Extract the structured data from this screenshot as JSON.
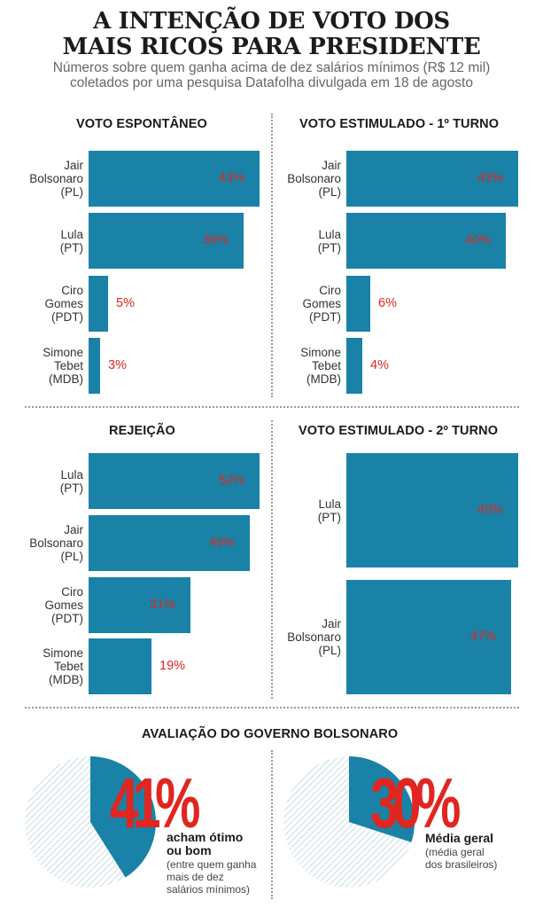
{
  "header": {
    "title_line1": "A INTENÇÃO DE VOTO DOS",
    "title_line2": "MAIS RICOS PARA PRESIDENTE",
    "subtitle_line1": "Números sobre quem ganha acima de dez salários mínimos (R$ 12 mil)",
    "subtitle_line2": "coletados por uma pesquisa Datafolha divulgada em 18 de agosto"
  },
  "colors": {
    "bar": "#1982a6",
    "value": "#e0261f",
    "pie_hatch": "#b9d4e0"
  },
  "chart_data": [
    {
      "type": "bar",
      "orientation": "horizontal",
      "title": "VOTO ESPONTÂNEO",
      "categories": [
        [
          "Jair",
          "Bolsonaro",
          "(PL)"
        ],
        [
          "Lula",
          "(PT)"
        ],
        [
          "Ciro",
          "Gomes",
          "(PDT)"
        ],
        [
          "Simone",
          "Tebet",
          "(MDB)"
        ]
      ],
      "values": [
        43,
        39,
        5,
        3
      ],
      "labels": [
        "43%",
        "39%",
        "5%",
        "3%"
      ]
    },
    {
      "type": "bar",
      "orientation": "horizontal",
      "title": "VOTO ESTIMULADO - 1º TURNO",
      "categories": [
        [
          "Jair",
          "Bolsonaro",
          "(PL)"
        ],
        [
          "Lula",
          "(PT)"
        ],
        [
          "Ciro",
          "Gomes",
          "(PDT)"
        ],
        [
          "Simone",
          "Tebet",
          "(MDB)"
        ]
      ],
      "values": [
        43,
        40,
        6,
        4
      ],
      "labels": [
        "43%",
        "40%",
        "6%",
        "4%"
      ]
    },
    {
      "type": "bar",
      "orientation": "horizontal",
      "title": "REJEIÇÃO",
      "categories": [
        [
          "Lula",
          "(PT)"
        ],
        [
          "Jair",
          "Bolsonaro",
          "(PL)"
        ],
        [
          "Ciro",
          "Gomes",
          "(PDT)"
        ],
        [
          "Simone",
          "Tebet",
          "(MDB)"
        ]
      ],
      "values": [
        52,
        49,
        31,
        19
      ],
      "labels": [
        "52%",
        "49%",
        "31%",
        "19%"
      ]
    },
    {
      "type": "bar",
      "orientation": "horizontal",
      "title": "VOTO ESTIMULADO - 2º TURNO",
      "categories": [
        [
          "Lula",
          "(PT)"
        ],
        [
          "Jair",
          "Bolsonaro",
          "(PL)"
        ]
      ],
      "values": [
        49,
        47
      ],
      "labels": [
        "49%",
        "47%"
      ]
    },
    {
      "type": "pie",
      "title": "AVALIAÇÃO DO GOVERNO BOLSONARO",
      "panels": [
        {
          "value": 41,
          "label": "41%",
          "caption": [
            "acham ótimo",
            "ou bom"
          ],
          "note": [
            "(entre quem ganha",
            "mais de dez",
            "salários mínimos)"
          ]
        },
        {
          "value": 30,
          "label": "30%",
          "caption": [
            "Média geral"
          ],
          "note": [
            "(média geral",
            "dos brasileiros)"
          ]
        }
      ]
    }
  ]
}
